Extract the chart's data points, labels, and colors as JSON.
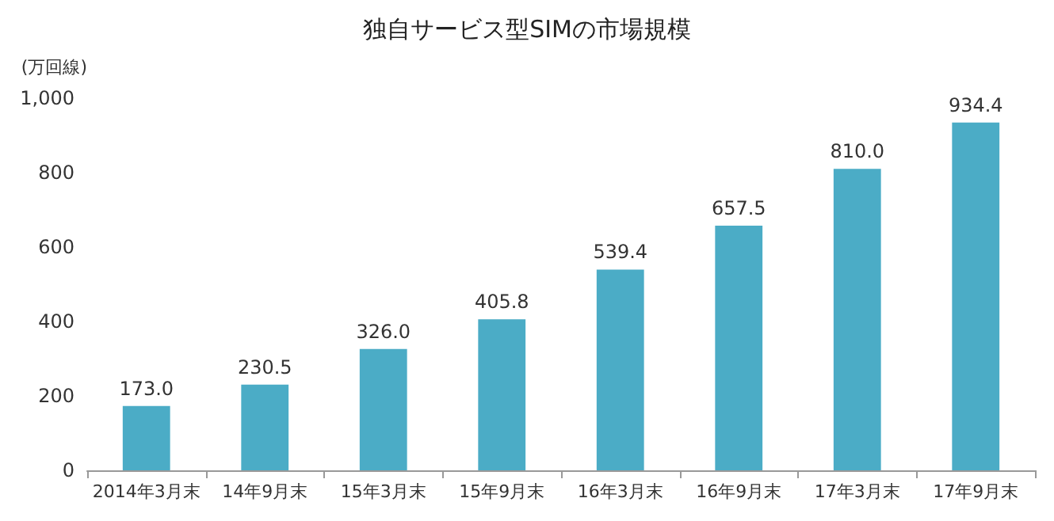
{
  "chart_data": {
    "type": "bar",
    "title": "独自サービス型SIMの市場規模",
    "ylabel": "(万回線)",
    "categories": [
      "2014年3月末",
      "14年9月末",
      "15年3月末",
      "15年9月末",
      "16年3月末",
      "16年9月末",
      "17年3月末",
      "17年9月末"
    ],
    "values": [
      173.0,
      230.5,
      326.0,
      405.8,
      539.4,
      657.5,
      810.0,
      934.4
    ],
    "value_labels": [
      "173.0",
      "230.5",
      "326.0",
      "405.8",
      "539.4",
      "657.5",
      "810.0",
      "934.4"
    ],
    "color": "#4bacc6",
    "ylim": [
      0,
      1000
    ],
    "yticks": [
      {
        "value": 0,
        "label": "0"
      },
      {
        "value": 200,
        "label": "200"
      },
      {
        "value": 400,
        "label": "400"
      },
      {
        "value": 600,
        "label": "600"
      },
      {
        "value": 800,
        "label": "800"
      },
      {
        "value": 1000,
        "label": "1,000"
      }
    ],
    "grid": false
  }
}
